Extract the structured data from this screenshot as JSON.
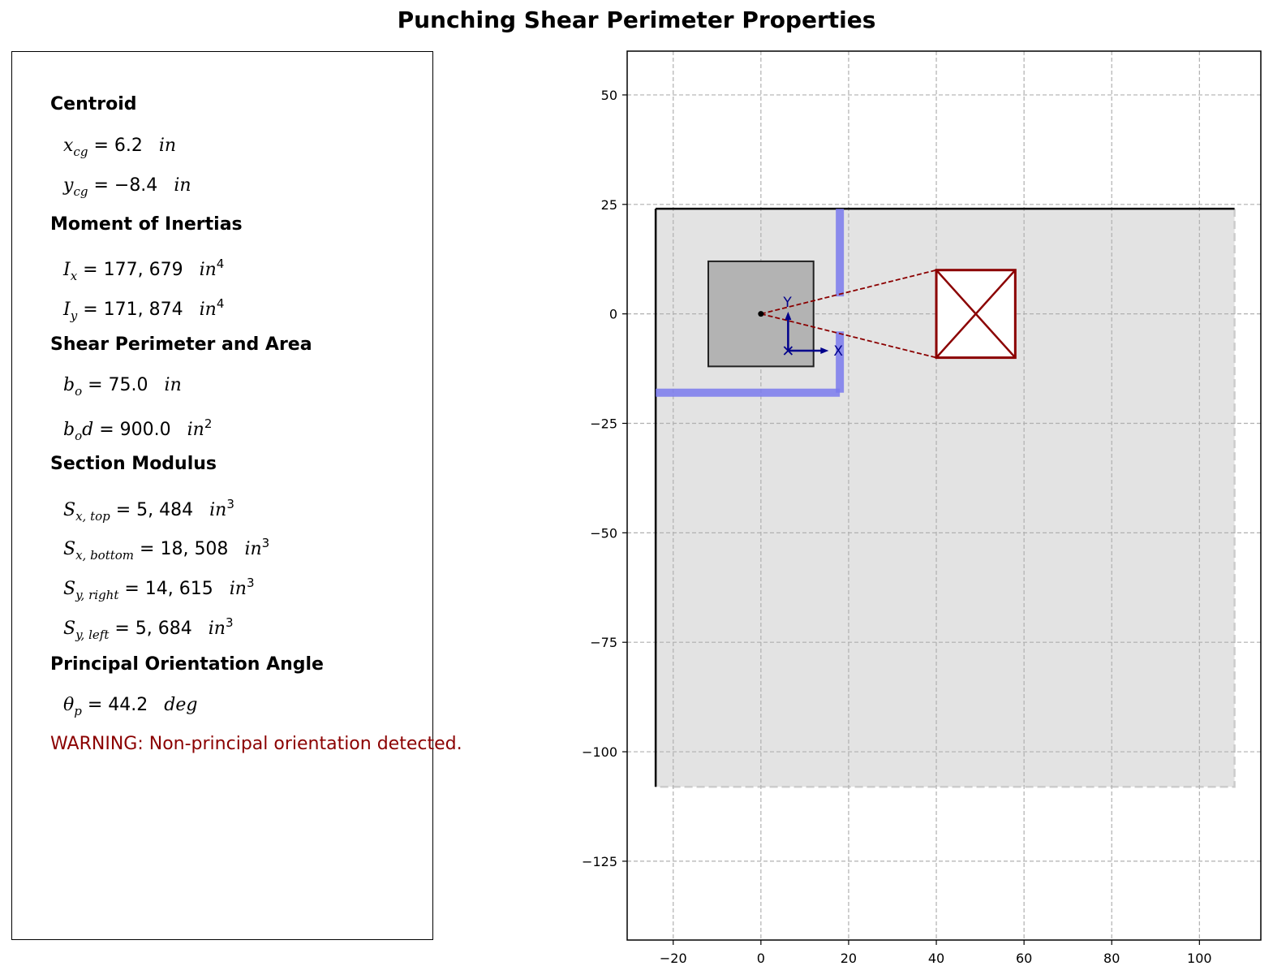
{
  "title": "Punching Shear Perimeter Properties",
  "panel": {
    "centroid_heading": "Centroid",
    "xcg": {
      "sym": "x",
      "sub": "cg",
      "value": "= 6.2",
      "unit": "in"
    },
    "ycg": {
      "sym": "y",
      "sub": "cg",
      "value": "= −8.4",
      "unit": "in"
    },
    "inertia_heading": "Moment of Inertias",
    "ix": {
      "sym": "I",
      "sub": "x",
      "value": "= 177, 679",
      "unit": "in",
      "exp": "4"
    },
    "iy": {
      "sym": "I",
      "sub": "y",
      "value": "= 171, 874",
      "unit": "in",
      "exp": "4"
    },
    "perimeter_heading": "Shear Perimeter and Area",
    "bo": {
      "sym": "b",
      "sub": "o",
      "value": "= 75.0",
      "unit": "in"
    },
    "bod": {
      "sym": "b",
      "sub": "o",
      "sym2": "d",
      "value": "= 900.0",
      "unit": "in",
      "exp": "2"
    },
    "modulus_heading": "Section Modulus",
    "sxtop": {
      "sym": "S",
      "sub": "x, top",
      "value": "= 5, 484",
      "unit": "in",
      "exp": "3"
    },
    "sxbottom": {
      "sym": "S",
      "sub": "x, bottom",
      "value": "= 18, 508",
      "unit": "in",
      "exp": "3"
    },
    "syright": {
      "sym": "S",
      "sub": "y, right",
      "value": "= 14, 615",
      "unit": "in",
      "exp": "3"
    },
    "syleft": {
      "sym": "S",
      "sub": "y, left",
      "value": "= 5, 684",
      "unit": "in",
      "exp": "3"
    },
    "angle_heading": "Principal Orientation Angle",
    "theta": {
      "sym": "θ",
      "sub": "p",
      "value": "= 44.2",
      "unit": "deg"
    },
    "warning": "WARNING: Non-principal orientation detected."
  },
  "chart_data": {
    "type": "diagram",
    "xlim": [
      -30.5,
      114
    ],
    "ylim": [
      -143,
      60
    ],
    "xticks": [
      -20,
      0,
      20,
      40,
      60,
      80,
      100
    ],
    "yticks": [
      50,
      25,
      0,
      -25,
      -50,
      -75,
      -100,
      -125
    ],
    "grid": true,
    "slab": {
      "x": [
        -24,
        108
      ],
      "y": [
        -108,
        24
      ]
    },
    "slab_edges": [
      [
        [
          -24,
          -108
        ],
        [
          -24,
          24
        ]
      ],
      [
        [
          -24,
          24
        ],
        [
          108,
          24
        ]
      ]
    ],
    "column": {
      "x": [
        -12,
        12
      ],
      "y": [
        -12,
        12
      ]
    },
    "perimeter": [
      [
        [
          -24,
          -18
        ],
        [
          18,
          -18
        ]
      ],
      [
        [
          18,
          -18
        ],
        [
          18,
          -4
        ]
      ],
      [
        [
          18,
          4
        ],
        [
          18,
          24
        ]
      ]
    ],
    "centroid": [
      6.2,
      -8.4
    ],
    "column_center": [
      0,
      0
    ],
    "axis_labels": {
      "x": "X",
      "y": "Y"
    },
    "opening": {
      "x": [
        40,
        58
      ],
      "y": [
        -10,
        10
      ]
    },
    "colors": {
      "slab_fill": "#e3e3e3",
      "column_fill": "#b3b3b3",
      "perimeter": "#7b7bee",
      "opening": "#8b0000",
      "axes": "#00008b"
    }
  }
}
